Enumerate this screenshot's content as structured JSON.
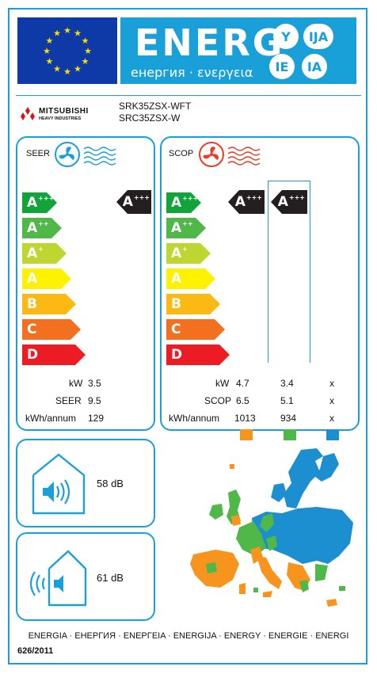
{
  "header": {
    "energy_word": "ENERG",
    "energy_subtitle": "енергия · ενεργεια",
    "language_badges": [
      "Y",
      "IJA",
      "IE",
      "IA"
    ]
  },
  "supplier": {
    "brand_name": "MITSUBISHI",
    "brand_subtitle": "HEAVY INDUSTRIES",
    "model_indoor": "SRK35ZSX-WFT",
    "model_outdoor": "SRC35ZSX-W"
  },
  "efficiency_scale": [
    {
      "class": "A",
      "sup": "+++",
      "color": "#11a43a"
    },
    {
      "class": "A",
      "sup": "++",
      "color": "#50b848"
    },
    {
      "class": "A",
      "sup": "+",
      "color": "#bfd631"
    },
    {
      "class": "A",
      "sup": "",
      "color": "#fff200"
    },
    {
      "class": "B",
      "sup": "",
      "color": "#fcb813"
    },
    {
      "class": "C",
      "sup": "",
      "color": "#f37021"
    },
    {
      "class": "D",
      "sup": "",
      "color": "#ed1c24"
    }
  ],
  "cooling": {
    "label": "SEER",
    "rating_class": "A",
    "rating_sup": "+++",
    "specs": [
      {
        "label": "kW",
        "value": "3.5"
      },
      {
        "label": "SEER",
        "value": "9.5"
      },
      {
        "label": "kWh/annum",
        "value": "129"
      }
    ]
  },
  "heating": {
    "label": "SCOP",
    "ratings": [
      {
        "class": "A",
        "sup": "+++",
        "zone": "warmer"
      },
      {
        "class": "A",
        "sup": "+++",
        "zone": "average"
      }
    ],
    "spec_labels": [
      "kW",
      "SCOP",
      "kWh/annum"
    ],
    "zones": [
      {
        "name": "warmer",
        "color": "#f7941d",
        "values": [
          "4.7",
          "6.5",
          "1013"
        ]
      },
      {
        "name": "average",
        "color": "#50b848",
        "values": [
          "3.4",
          "5.1",
          "934"
        ]
      },
      {
        "name": "colder",
        "color": "#1b8fd0",
        "values": [
          "x",
          "x",
          "x"
        ]
      }
    ]
  },
  "noise": {
    "indoor_db": "58 dB",
    "outdoor_db": "61 dB"
  },
  "footer": {
    "languages": "ENERGIA · ЕНЕРГИЯ · ΕΝΕΡΓΕΙΑ · ENERGIJA · ENERGY · ENERGIE · ENERGI",
    "regulation": "626/2011"
  },
  "colors": {
    "frame": "#1aa0d8",
    "eu_blue": "#0d3aa6",
    "eu_star": "#ffdd00",
    "rating_black": "#231f20",
    "fan_cool": "#1aa0d8",
    "fan_heat": "#ee3b24"
  },
  "icons": [
    "eu-flag-icon",
    "cooling-fan-icon",
    "heating-fan-icon",
    "indoor-speaker-icon",
    "outdoor-sound-icon",
    "europe-climate-map-icon"
  ]
}
